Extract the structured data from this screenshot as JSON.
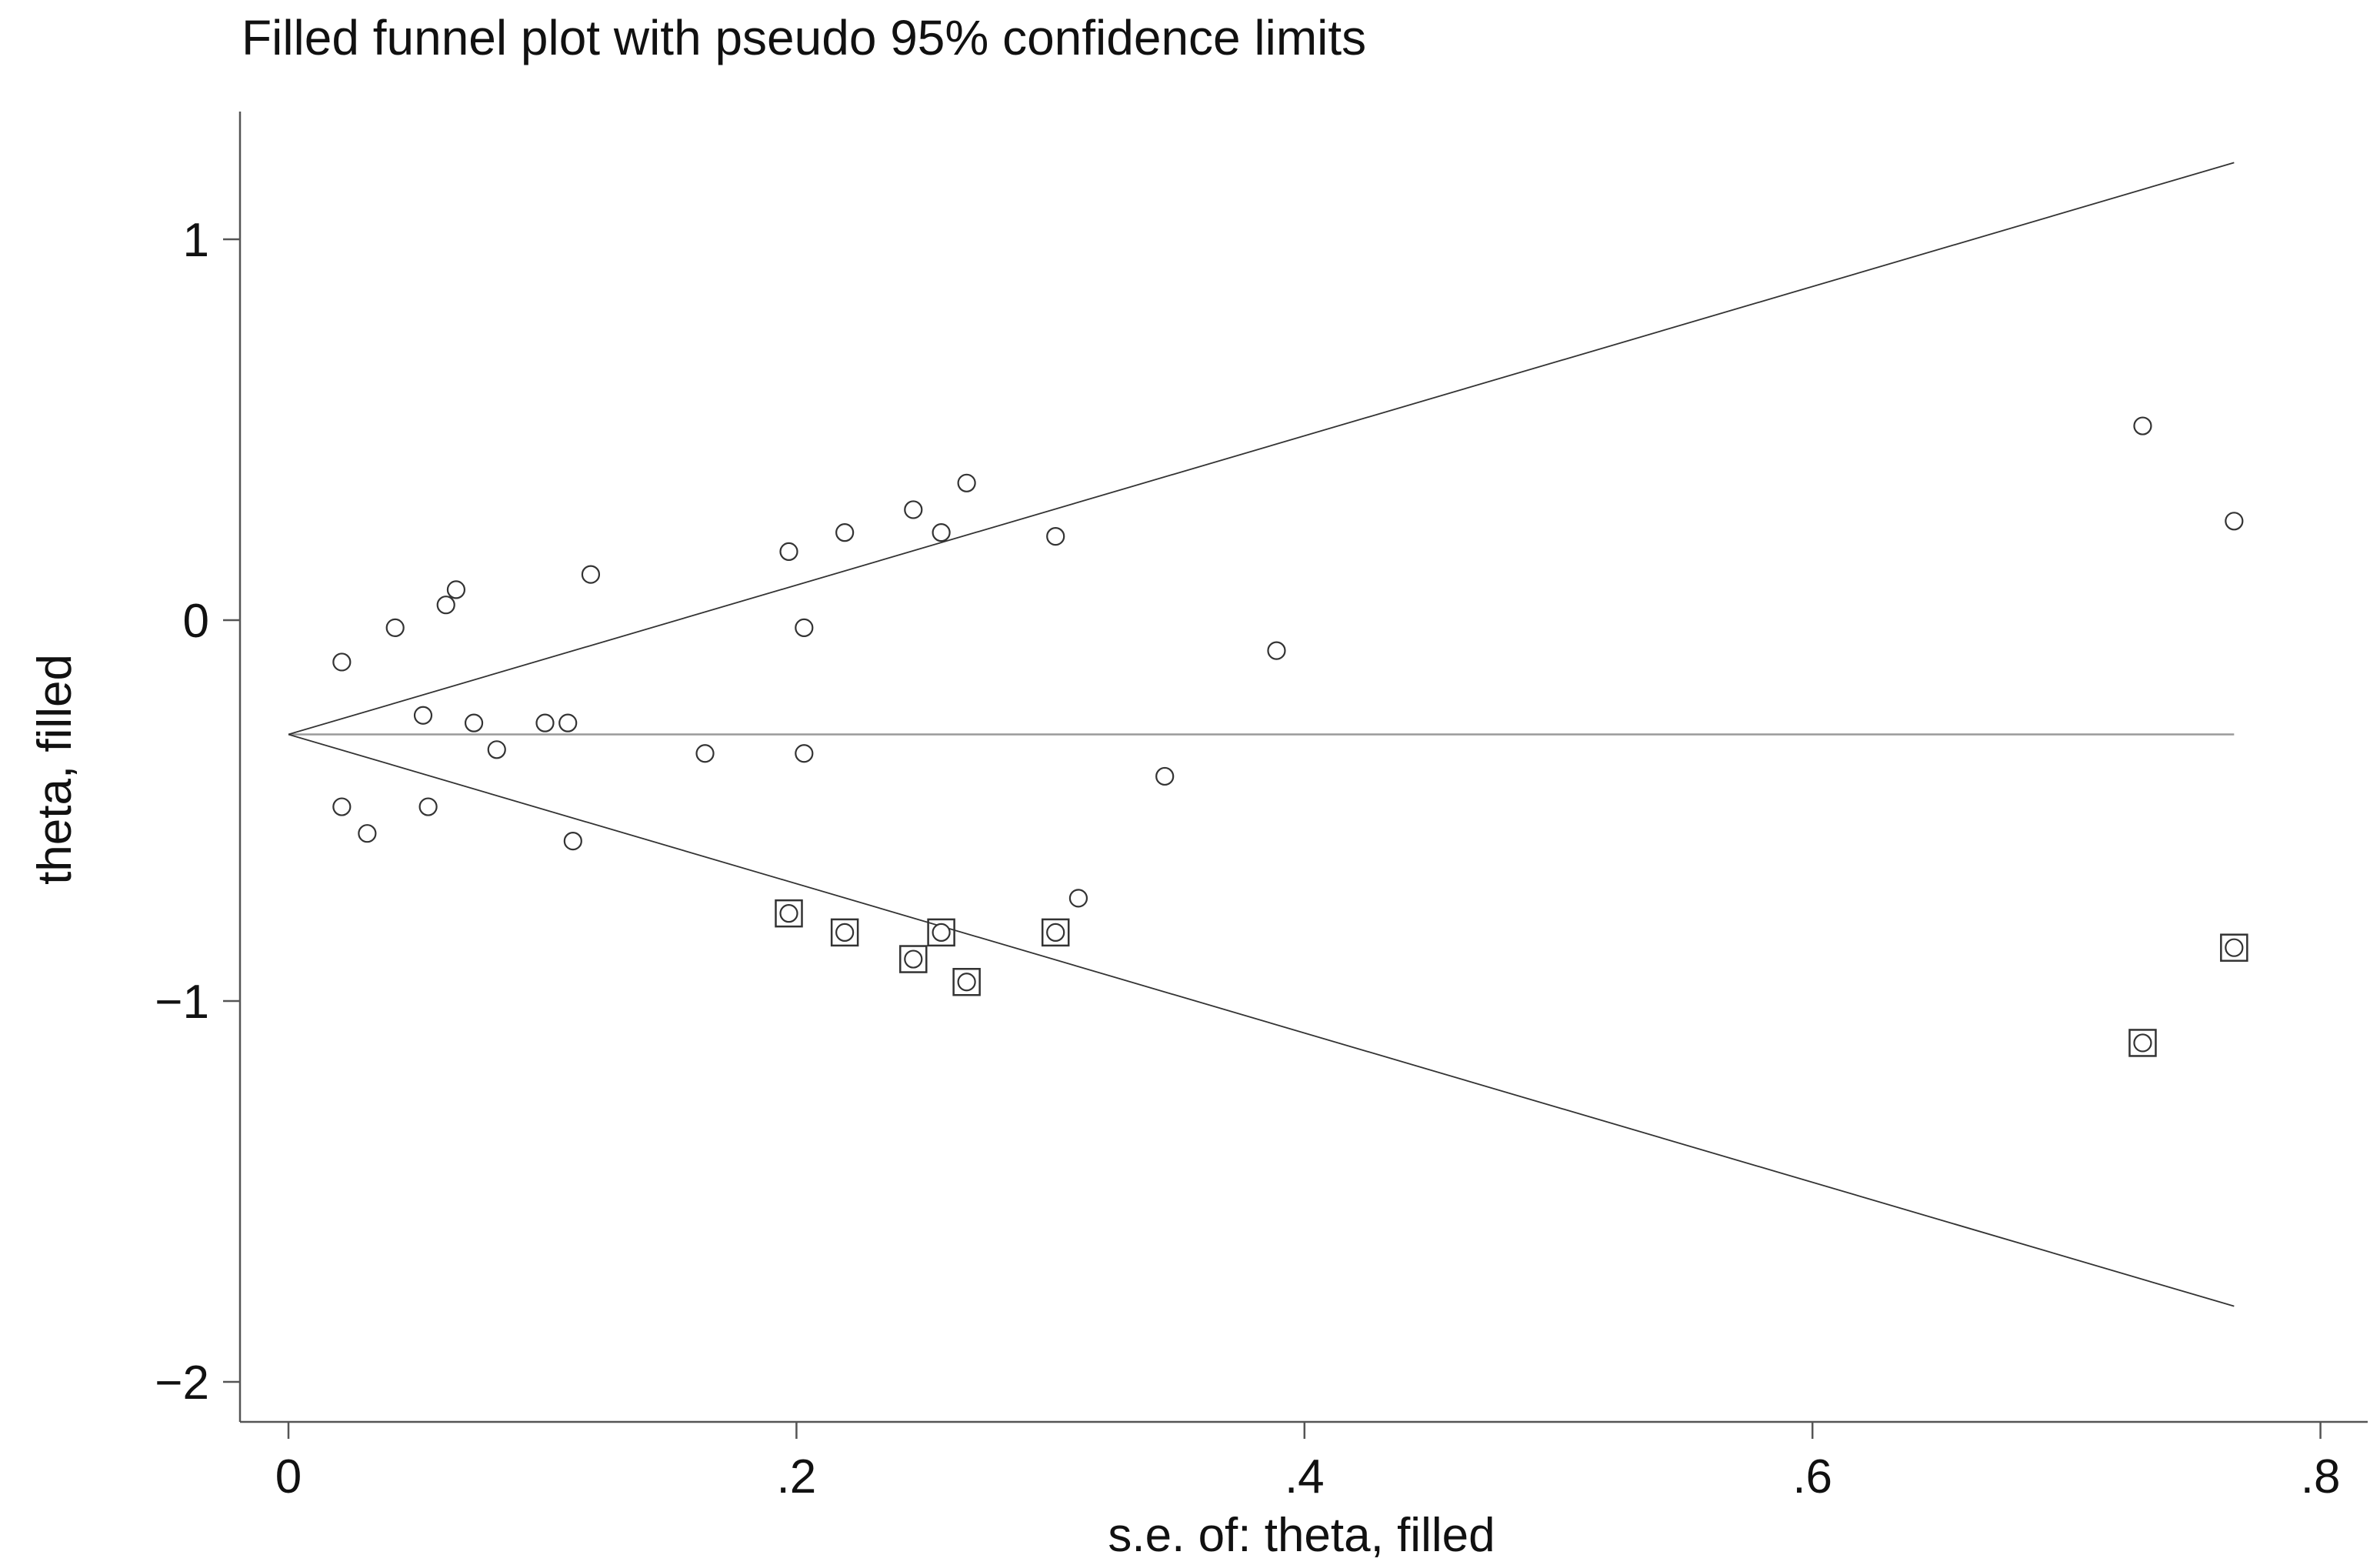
{
  "chart_data": {
    "type": "scatter",
    "title": "Filled funnel plot with pseudo 95% confidence limits",
    "xlabel": "s.e. of: theta, filled",
    "ylabel": "theta, filled",
    "xlim": [
      0,
      0.8
    ],
    "ylim": [
      -2,
      1
    ],
    "x_ticks": [
      0,
      0.2,
      0.4,
      0.6,
      0.8
    ],
    "x_tick_labels": [
      "0",
      ".2",
      ".4",
      ".6",
      ".8"
    ],
    "y_ticks": [
      1,
      0,
      -1,
      -2
    ],
    "y_tick_labels": [
      "1",
      "0",
      "−1",
      "−2"
    ],
    "grid": false,
    "pooled_estimate": -0.3,
    "funnel_se_max": 0.766,
    "series": [
      {
        "marker": "circle",
        "points": [
          {
            "x": 0.021,
            "y": -0.11
          },
          {
            "x": 0.021,
            "y": -0.49
          },
          {
            "x": 0.031,
            "y": -0.56
          },
          {
            "x": 0.042,
            "y": -0.02
          },
          {
            "x": 0.053,
            "y": -0.25
          },
          {
            "x": 0.055,
            "y": -0.49
          },
          {
            "x": 0.062,
            "y": 0.04
          },
          {
            "x": 0.066,
            "y": 0.08
          },
          {
            "x": 0.073,
            "y": -0.27
          },
          {
            "x": 0.082,
            "y": -0.34
          },
          {
            "x": 0.101,
            "y": -0.27
          },
          {
            "x": 0.11,
            "y": -0.27
          },
          {
            "x": 0.112,
            "y": -0.58
          },
          {
            "x": 0.119,
            "y": 0.12
          },
          {
            "x": 0.164,
            "y": -0.35
          },
          {
            "x": 0.197,
            "y": 0.18
          },
          {
            "x": 0.197,
            "y": -0.77
          },
          {
            "x": 0.203,
            "y": -0.02
          },
          {
            "x": 0.203,
            "y": -0.35
          },
          {
            "x": 0.219,
            "y": 0.23
          },
          {
            "x": 0.219,
            "y": -0.82
          },
          {
            "x": 0.246,
            "y": 0.29
          },
          {
            "x": 0.246,
            "y": -0.89
          },
          {
            "x": 0.257,
            "y": 0.23
          },
          {
            "x": 0.257,
            "y": -0.82
          },
          {
            "x": 0.267,
            "y": 0.36
          },
          {
            "x": 0.267,
            "y": -0.95
          },
          {
            "x": 0.302,
            "y": 0.22
          },
          {
            "x": 0.302,
            "y": -0.82
          },
          {
            "x": 0.311,
            "y": -0.73
          },
          {
            "x": 0.345,
            "y": -0.41
          },
          {
            "x": 0.389,
            "y": -0.08
          },
          {
            "x": 0.73,
            "y": 0.51
          },
          {
            "x": 0.73,
            "y": -1.11
          },
          {
            "x": 0.766,
            "y": 0.26
          },
          {
            "x": 0.766,
            "y": -0.86
          }
        ]
      },
      {
        "marker": "square",
        "points": [
          {
            "x": 0.197,
            "y": -0.77
          },
          {
            "x": 0.219,
            "y": -0.82
          },
          {
            "x": 0.246,
            "y": -0.89
          },
          {
            "x": 0.257,
            "y": -0.82
          },
          {
            "x": 0.267,
            "y": -0.95
          },
          {
            "x": 0.302,
            "y": -0.82
          },
          {
            "x": 0.73,
            "y": -1.11
          },
          {
            "x": 0.766,
            "y": -0.86
          }
        ]
      }
    ]
  }
}
